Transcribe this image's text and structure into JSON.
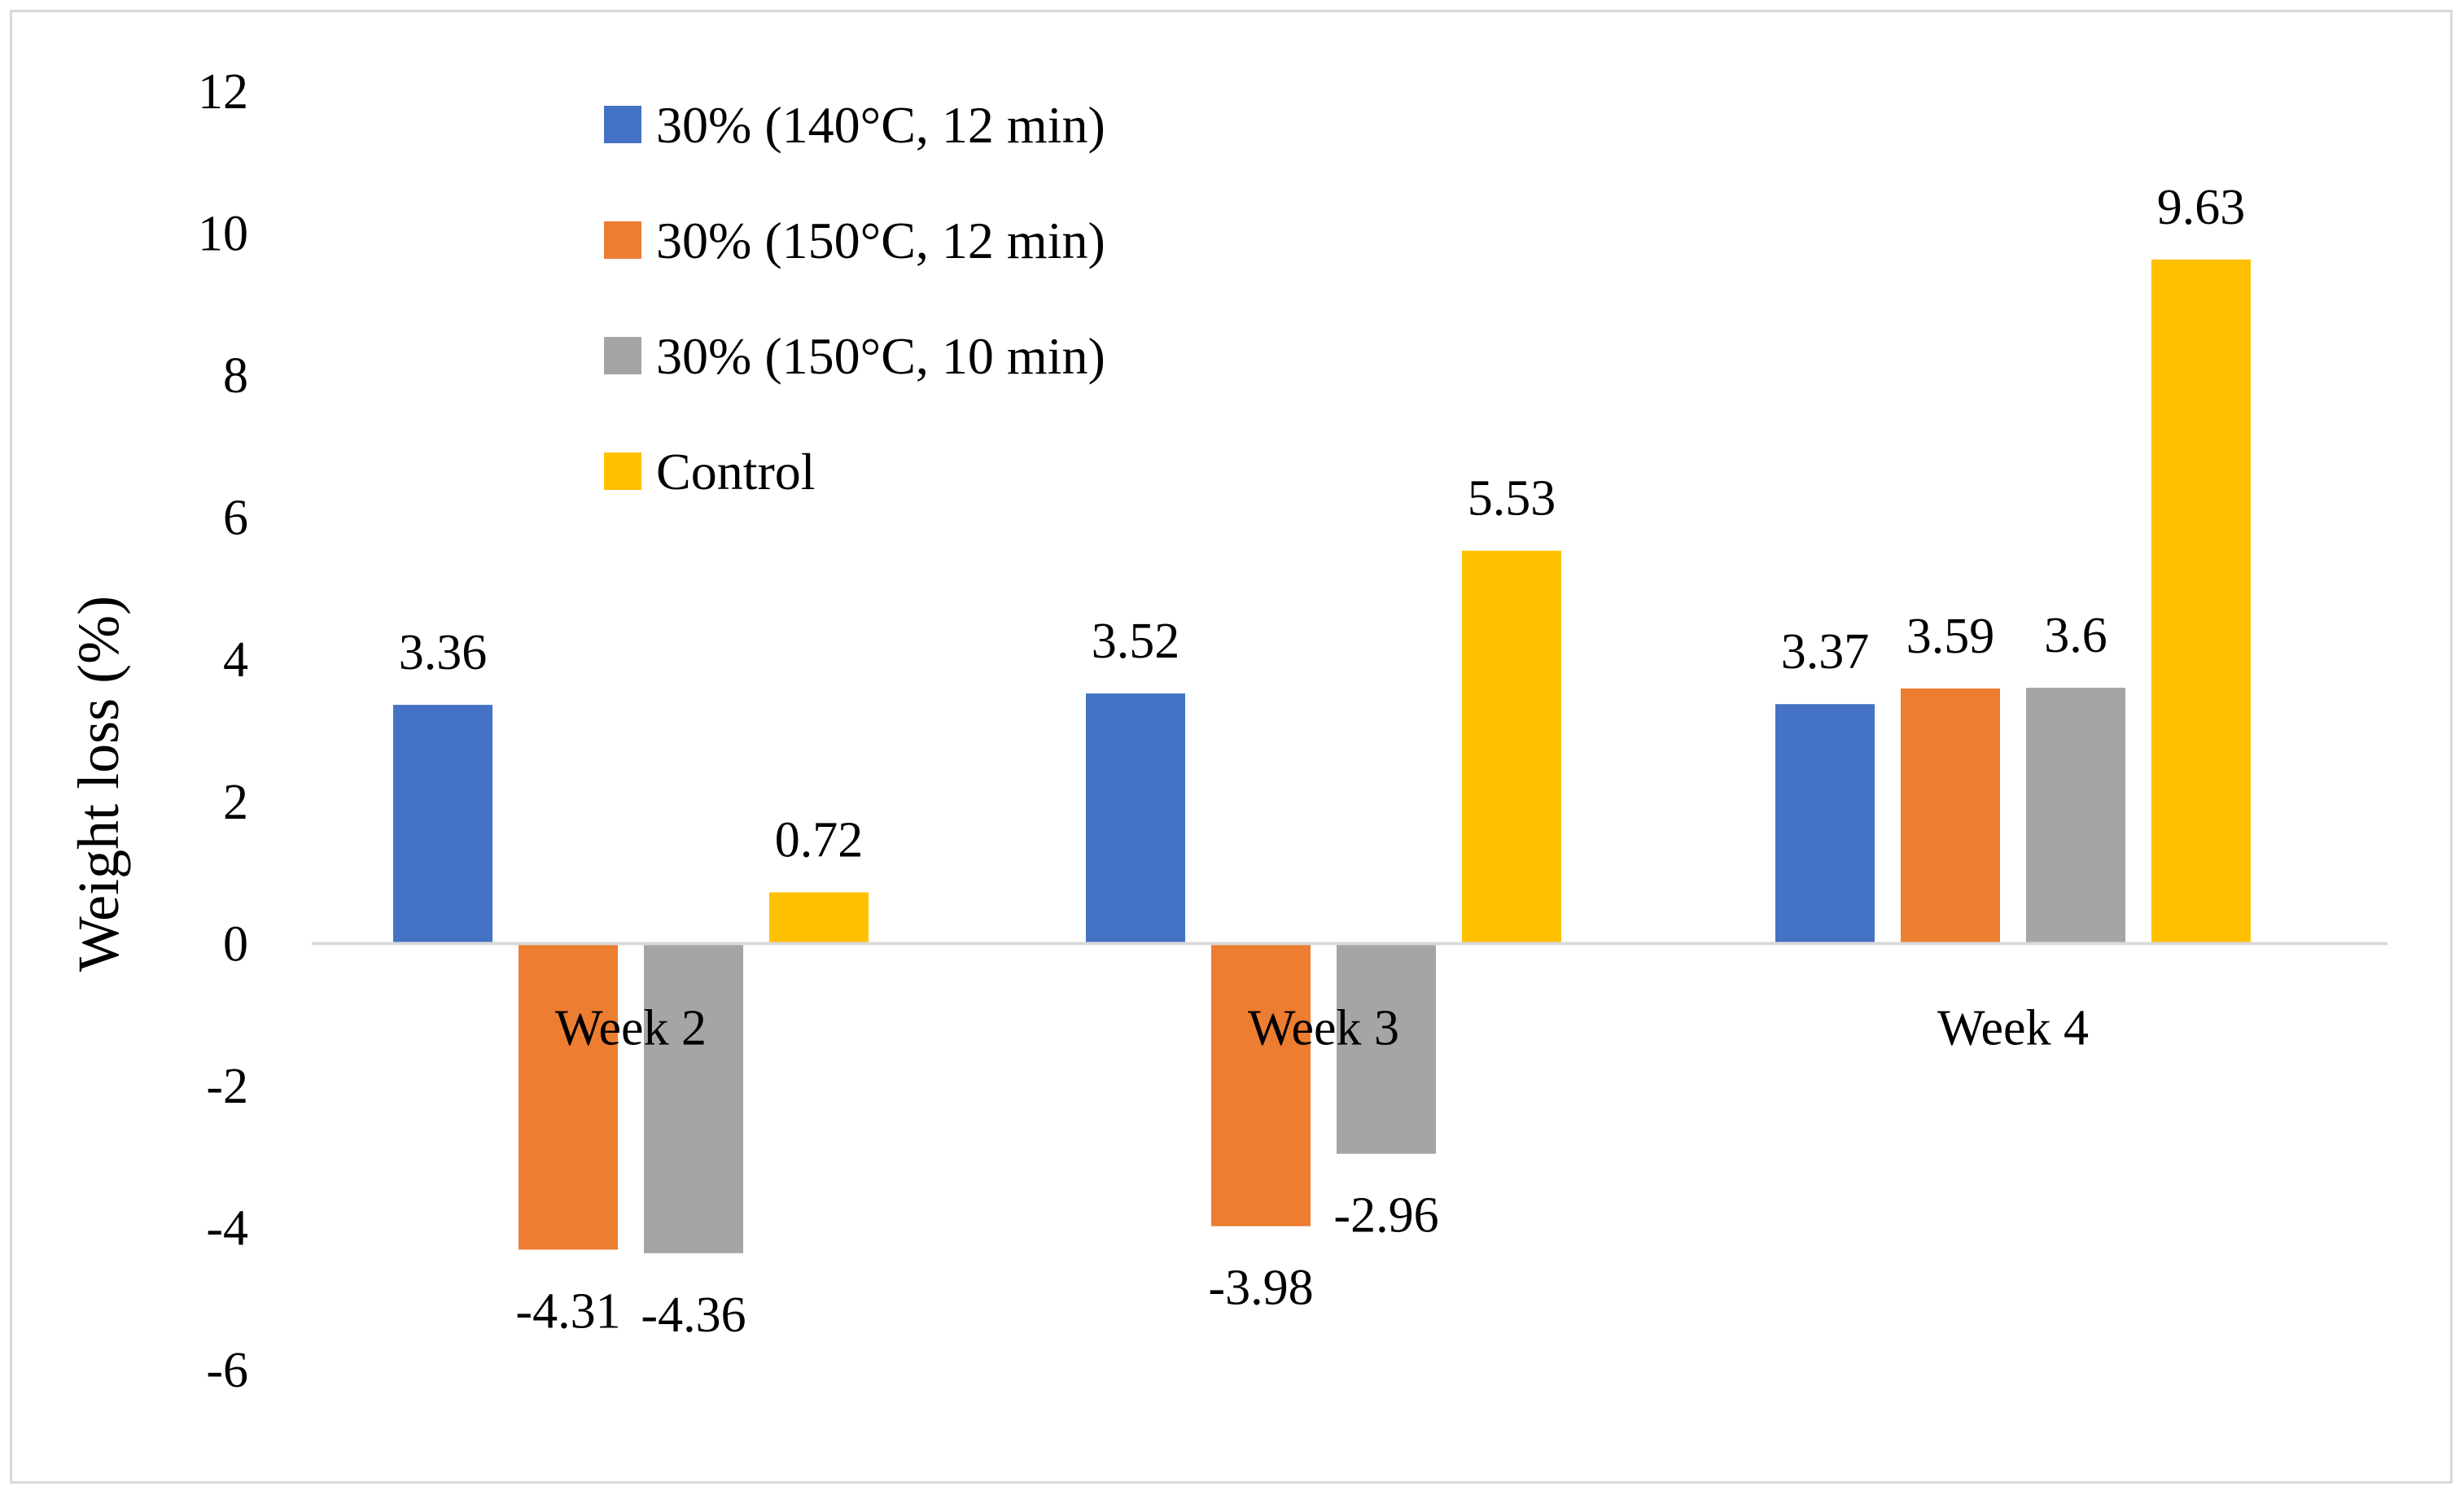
{
  "chart_data": {
    "type": "bar",
    "title": "",
    "xlabel": "",
    "ylabel": "Weight loss (%)",
    "ylim": [
      -6,
      12
    ],
    "ytick_step": 2,
    "ytick_labels": [
      "-6",
      "-4",
      "-2",
      "0",
      "2",
      "4",
      "6",
      "8",
      "10",
      "12"
    ],
    "grid": false,
    "legend_position": "top-left",
    "categories": [
      "Week 2",
      "Week 3",
      "Week 4"
    ],
    "series": [
      {
        "name": "30% (140°C, 12 min)",
        "color": "#4472C4",
        "values": [
          3.36,
          3.52,
          3.37
        ],
        "labels": [
          "3.36",
          "3.52",
          "3.37"
        ]
      },
      {
        "name": "30% (150°C, 12 min)",
        "color": "#ED7D31",
        "values": [
          -4.31,
          -3.98,
          3.59
        ],
        "labels": [
          "-4.31",
          "-3.98",
          "3.59"
        ]
      },
      {
        "name": "30% (150°C, 10 min)",
        "color": "#A5A5A5",
        "values": [
          -4.36,
          -2.96,
          3.6
        ],
        "labels": [
          "-4.36",
          "-2.96",
          "3.6"
        ]
      },
      {
        "name": "Control",
        "color": "#FFC000",
        "values": [
          0.72,
          5.53,
          9.63
        ],
        "labels": [
          "0.72",
          "5.53",
          "9.63"
        ]
      }
    ],
    "axis_color": "#d9d9d9"
  }
}
